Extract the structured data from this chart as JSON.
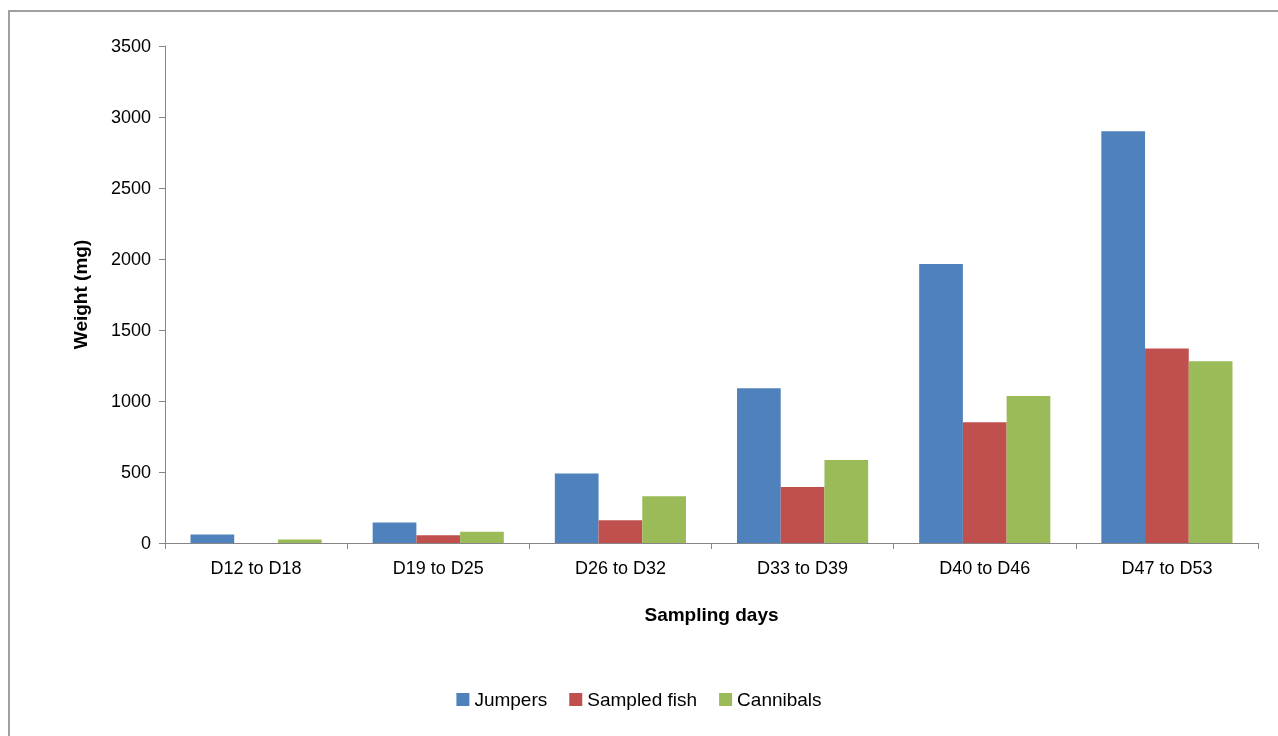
{
  "chart_data": {
    "type": "bar",
    "xlabel": "Sampling days",
    "ylabel": "Weight (mg)",
    "categories": [
      "D12 to D18",
      "D19 to D25",
      "D26 to D32",
      "D33 to D39",
      "D40 to D46",
      "D47 to D53"
    ],
    "series": [
      {
        "name": "Jumpers",
        "color": "#4f81bd",
        "values": [
          60,
          145,
          490,
          1090,
          1965,
          2900
        ]
      },
      {
        "name": "Sampled fish",
        "color": "#c0504d",
        "values": [
          null,
          55,
          160,
          395,
          850,
          1370
        ]
      },
      {
        "name": "Cannibals",
        "color": "#9bbb59",
        "values": [
          25,
          80,
          330,
          585,
          1035,
          1280
        ]
      }
    ],
    "ylim": [
      0,
      3500
    ],
    "yticks": [
      0,
      500,
      1000,
      1500,
      2000,
      2500,
      3000,
      3500
    ],
    "grid": false,
    "legend": "bottom"
  }
}
